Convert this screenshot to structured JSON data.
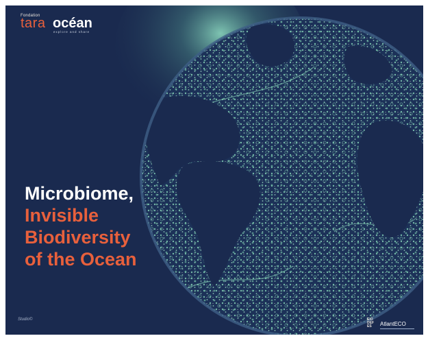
{
  "brand": {
    "foundation": "Fondation",
    "tara": "tara",
    "ocean": "océan",
    "tagline": "explore and share"
  },
  "title": {
    "line1": "Microbiome,",
    "line2": "Invisible",
    "line3": "Biodiversity",
    "line4": "of the Ocean"
  },
  "credit": "Studio©",
  "partners": {
    "eu_mark": [
      "EIO",
      "DEF",
      "ES"
    ],
    "atlanteco": "AtlantECO"
  },
  "colors": {
    "background": "#1a2a4f",
    "accent": "#e8603c",
    "plankton": "#7fc7b0",
    "glow": "#8ad6bd"
  }
}
